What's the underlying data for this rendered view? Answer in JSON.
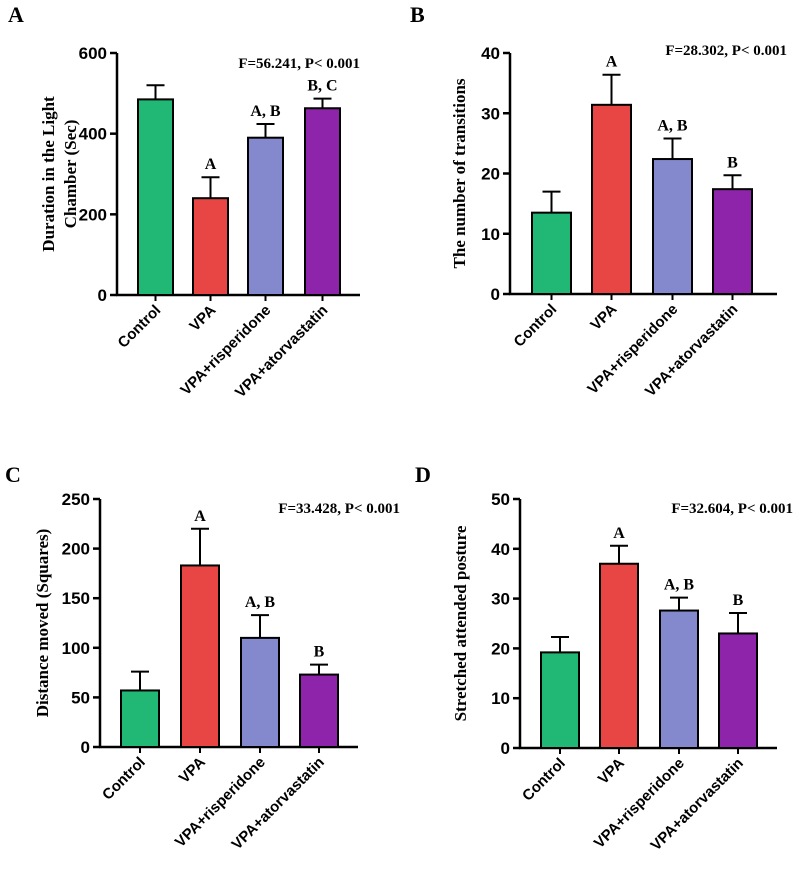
{
  "chart_data": [
    {
      "type": "bar",
      "panel": "A",
      "ylabel_lines": [
        "Duration in the Light",
        "Chamber (Sec)"
      ],
      "stat": "F=56.241, P< 0.001",
      "ylim": [
        0,
        600
      ],
      "yticks": [
        0,
        200,
        400,
        600
      ],
      "categories": [
        "Control",
        "VPA",
        "VPA+risperidone",
        "VPA+atorvastatin"
      ],
      "values": [
        485,
        240,
        390,
        463
      ],
      "errors": [
        35,
        52,
        34,
        24
      ],
      "sig": [
        "",
        "A",
        "A, B",
        "B, C"
      ]
    },
    {
      "type": "bar",
      "panel": "B",
      "ylabel_lines": [
        "The number of transitions"
      ],
      "stat": "F=28.302, P< 0.001",
      "ylim": [
        0,
        40
      ],
      "yticks": [
        0,
        10,
        20,
        30,
        40
      ],
      "categories": [
        "Control",
        "VPA",
        "VPA+risperidone",
        "VPA+atorvastatin"
      ],
      "values": [
        13.5,
        31.4,
        22.4,
        17.4
      ],
      "errors": [
        3.5,
        5.0,
        3.4,
        2.3
      ],
      "sig": [
        "",
        "A",
        "A, B",
        "B"
      ]
    },
    {
      "type": "bar",
      "panel": "C",
      "ylabel_lines": [
        "Distance moved (Squares)"
      ],
      "stat": "F=33.428, P< 0.001",
      "ylim": [
        0,
        250
      ],
      "yticks": [
        0,
        50,
        100,
        150,
        200,
        250
      ],
      "categories": [
        "Control",
        "VPA",
        "VPA+risperidone",
        "VPA+atorvastatin"
      ],
      "values": [
        57,
        183,
        110,
        73
      ],
      "errors": [
        19,
        37,
        23,
        10
      ],
      "sig": [
        "",
        "A",
        "A, B",
        "B"
      ]
    },
    {
      "type": "bar",
      "panel": "D",
      "ylabel_lines": [
        "Stretched attended posture"
      ],
      "stat": "F=32.604, P< 0.001",
      "ylim": [
        0,
        50
      ],
      "yticks": [
        0,
        10,
        20,
        30,
        40,
        50
      ],
      "categories": [
        "Control",
        "VPA",
        "VPA+risperidone",
        "VPA+atorvastatin"
      ],
      "values": [
        19.2,
        37,
        27.6,
        23
      ],
      "errors": [
        3.1,
        3.6,
        2.6,
        4.1
      ],
      "sig": [
        "",
        "A",
        "A, B",
        "B"
      ]
    }
  ],
  "colors": [
    "#20b874",
    "#e84545",
    "#8488cc",
    "#8e24aa"
  ]
}
